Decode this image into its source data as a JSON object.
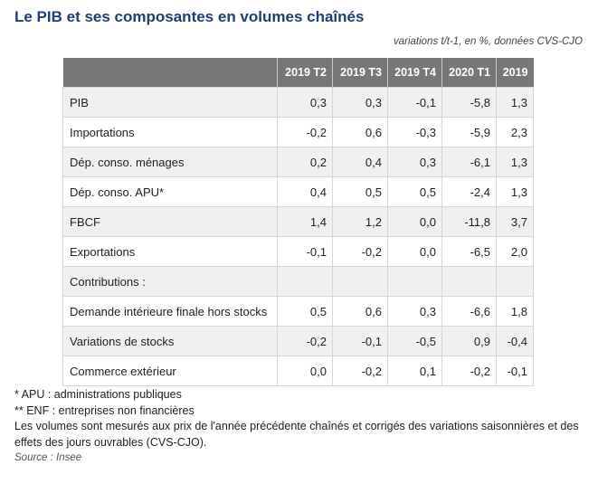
{
  "title": "Le PIB et ses composantes en volumes chaînés",
  "subtitle": "variations t/t-1, en %, données CVS-CJO",
  "table": {
    "columns": [
      "2019 T2",
      "2019 T3",
      "2019 T4",
      "2020 T1",
      "2019"
    ],
    "rows": [
      {
        "label": "PIB",
        "values": [
          "0,3",
          "0,3",
          "-0,1",
          "-5,8",
          "1,3"
        ]
      },
      {
        "label": "Importations",
        "values": [
          "-0,2",
          "0,6",
          "-0,3",
          "-5,9",
          "2,3"
        ]
      },
      {
        "label": "Dép. conso. ménages",
        "values": [
          "0,2",
          "0,4",
          "0,3",
          "-6,1",
          "1,3"
        ]
      },
      {
        "label": "Dép. conso. APU*",
        "values": [
          "0,4",
          "0,5",
          "0,5",
          "-2,4",
          "1,3"
        ]
      },
      {
        "label": "FBCF",
        "values": [
          "1,4",
          "1,2",
          "0,0",
          "-11,8",
          "3,7"
        ]
      },
      {
        "label": "Exportations",
        "values": [
          "-0,1",
          "-0,2",
          "0,0",
          "-6,5",
          "2,0"
        ]
      },
      {
        "label": "Contributions :",
        "values": [
          "",
          "",
          "",
          "",
          ""
        ]
      },
      {
        "label": "Demande intérieure finale hors stocks",
        "values": [
          "0,5",
          "0,6",
          "0,3",
          "-6,6",
          "1,8"
        ]
      },
      {
        "label": "Variations de stocks",
        "values": [
          "-0,2",
          "-0,1",
          "-0,5",
          "0,9",
          "-0,4"
        ]
      },
      {
        "label": "Commerce extérieur",
        "values": [
          "0,0",
          "-0,2",
          "0,1",
          "-0,2",
          "-0,1"
        ]
      }
    ]
  },
  "notes": {
    "apu": "* APU : administrations publiques",
    "enf": "** ENF : entreprises non financières",
    "method": "Les volumes sont mesurés aux prix de l'année précédente chaînés et corrigés des variations saisonnières et des effets des jours ouvrables (CVS-CJO).",
    "source": "Source : Insee"
  }
}
